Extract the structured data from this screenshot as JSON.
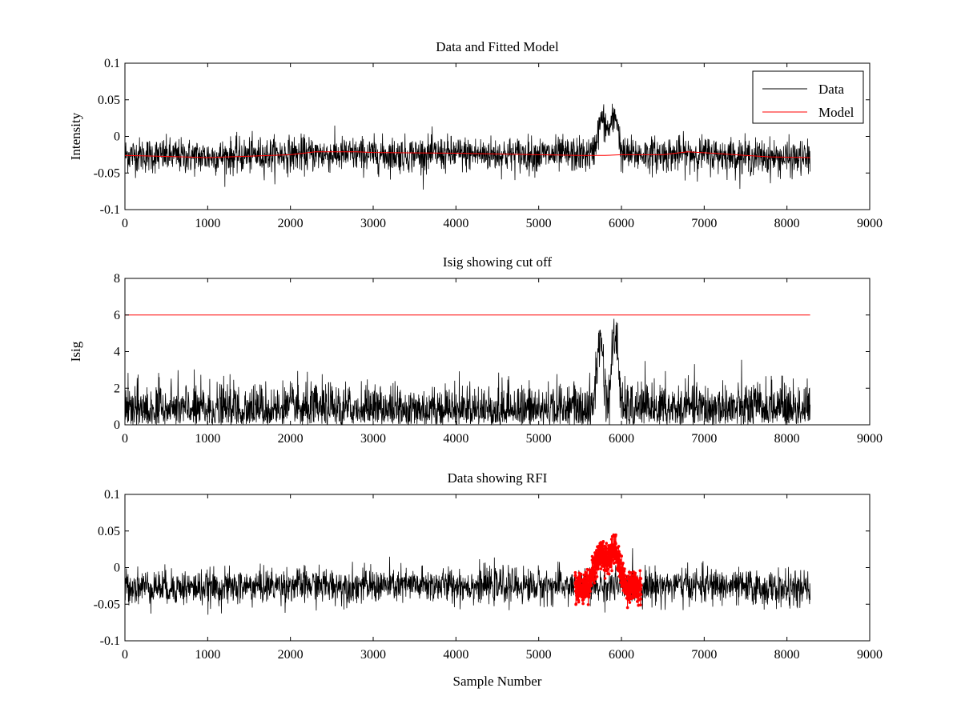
{
  "figure": {
    "background": "#ffffff"
  },
  "chart_data": [
    {
      "type": "line",
      "title": "Data and Fitted Model",
      "xlabel": "",
      "ylabel": "Intensity",
      "xlim": [
        0,
        9000
      ],
      "ylim": [
        -0.1,
        0.1
      ],
      "xticks": [
        0,
        1000,
        2000,
        3000,
        4000,
        5000,
        6000,
        7000,
        8000,
        9000
      ],
      "yticks": [
        -0.1,
        -0.05,
        0,
        0.05,
        0.1
      ],
      "ytick_labels": [
        "-0.1",
        "-0.05",
        "0",
        "0.05",
        "0.1"
      ],
      "grid": false,
      "legend": {
        "placement": "top-right",
        "entries": [
          "Data",
          "Model"
        ]
      },
      "series": [
        {
          "name": "Data",
          "color": "#000000",
          "kind": "noisy-line",
          "x_range": [
            0,
            8280
          ],
          "baseline": [
            [
              0,
              -0.025
            ],
            [
              1000,
              -0.028
            ],
            [
              2000,
              -0.024
            ],
            [
              3000,
              -0.025
            ],
            [
              4000,
              -0.024
            ],
            [
              5000,
              -0.025
            ],
            [
              5650,
              -0.025
            ],
            [
              5760,
              0.025
            ],
            [
              5840,
              0.008
            ],
            [
              5940,
              0.03
            ],
            [
              6000,
              -0.025
            ],
            [
              7000,
              -0.024
            ],
            [
              8000,
              -0.03
            ],
            [
              8280,
              -0.03
            ]
          ],
          "noise_std": 0.012
        },
        {
          "name": "Model",
          "color": "#ff0000",
          "points": [
            [
              0,
              -0.026
            ],
            [
              400,
              -0.027
            ],
            [
              1000,
              -0.029
            ],
            [
              1500,
              -0.027
            ],
            [
              2000,
              -0.025
            ],
            [
              2300,
              -0.021
            ],
            [
              2800,
              -0.021
            ],
            [
              3000,
              -0.022
            ],
            [
              4000,
              -0.023
            ],
            [
              4500,
              -0.024
            ],
            [
              5000,
              -0.025
            ],
            [
              5500,
              -0.026
            ],
            [
              5800,
              -0.026
            ],
            [
              6000,
              -0.025
            ],
            [
              6500,
              -0.025
            ],
            [
              6800,
              -0.021
            ],
            [
              7100,
              -0.023
            ],
            [
              7500,
              -0.026
            ],
            [
              7800,
              -0.028
            ],
            [
              8280,
              -0.029
            ]
          ]
        }
      ]
    },
    {
      "type": "line",
      "title": "Isig showing cut off",
      "xlabel": "",
      "ylabel": "Isig",
      "xlim": [
        0,
        9000
      ],
      "ylim": [
        0,
        8
      ],
      "xticks": [
        0,
        1000,
        2000,
        3000,
        4000,
        5000,
        6000,
        7000,
        8000,
        9000
      ],
      "yticks": [
        0,
        2,
        4,
        6,
        8
      ],
      "ytick_labels": [
        "0",
        "2",
        "4",
        "6",
        "8"
      ],
      "grid": false,
      "series": [
        {
          "color": "#000000",
          "kind": "noisy-abs",
          "x_range": [
            0,
            8280
          ],
          "baseline": [
            [
              0,
              0.8
            ],
            [
              5650,
              0.8
            ],
            [
              5720,
              4.0
            ],
            [
              5760,
              4.8
            ],
            [
              5800,
              2.0
            ],
            [
              5840,
              1.0
            ],
            [
              5900,
              4.5
            ],
            [
              5940,
              4.8
            ],
            [
              5980,
              2.5
            ],
            [
              6000,
              0.8
            ],
            [
              8280,
              0.9
            ]
          ],
          "noise_std": 0.75
        },
        {
          "color": "#ff0000",
          "points": [
            [
              0,
              6.0
            ],
            [
              8280,
              6.0
            ]
          ]
        }
      ]
    },
    {
      "type": "line",
      "title": "Data showing RFI",
      "xlabel": "Sample Number",
      "ylabel": "",
      "xlim": [
        0,
        9000
      ],
      "ylim": [
        -0.1,
        0.1
      ],
      "xticks": [
        0,
        1000,
        2000,
        3000,
        4000,
        5000,
        6000,
        7000,
        8000,
        9000
      ],
      "yticks": [
        -0.1,
        -0.05,
        0,
        0.05,
        0.1
      ],
      "ytick_labels": [
        "-0.1",
        "-0.05",
        "0",
        "0.05",
        "0.1"
      ],
      "grid": false,
      "series": [
        {
          "color": "#000000",
          "kind": "noisy-line",
          "x_range": [
            0,
            8280
          ],
          "baseline": [
            [
              0,
              -0.025
            ],
            [
              1000,
              -0.028
            ],
            [
              2000,
              -0.024
            ],
            [
              3000,
              -0.025
            ],
            [
              4000,
              -0.024
            ],
            [
              5000,
              -0.025
            ],
            [
              5440,
              -0.025
            ],
            [
              6240,
              -0.025
            ],
            [
              7000,
              -0.024
            ],
            [
              8000,
              -0.03
            ],
            [
              8280,
              -0.03
            ]
          ],
          "noise_std": 0.012
        },
        {
          "color": "#ff0000",
          "kind": "noisy-markers",
          "marker": "dot",
          "x_range": [
            5440,
            6240
          ],
          "baseline": [
            [
              5440,
              -0.028
            ],
            [
              5600,
              -0.025
            ],
            [
              5700,
              0.01
            ],
            [
              5760,
              0.022
            ],
            [
              5820,
              0.008
            ],
            [
              5880,
              0.02
            ],
            [
              5920,
              0.03
            ],
            [
              5980,
              0.0
            ],
            [
              6050,
              -0.025
            ],
            [
              6240,
              -0.028
            ]
          ],
          "noise_std": 0.01
        }
      ]
    }
  ]
}
